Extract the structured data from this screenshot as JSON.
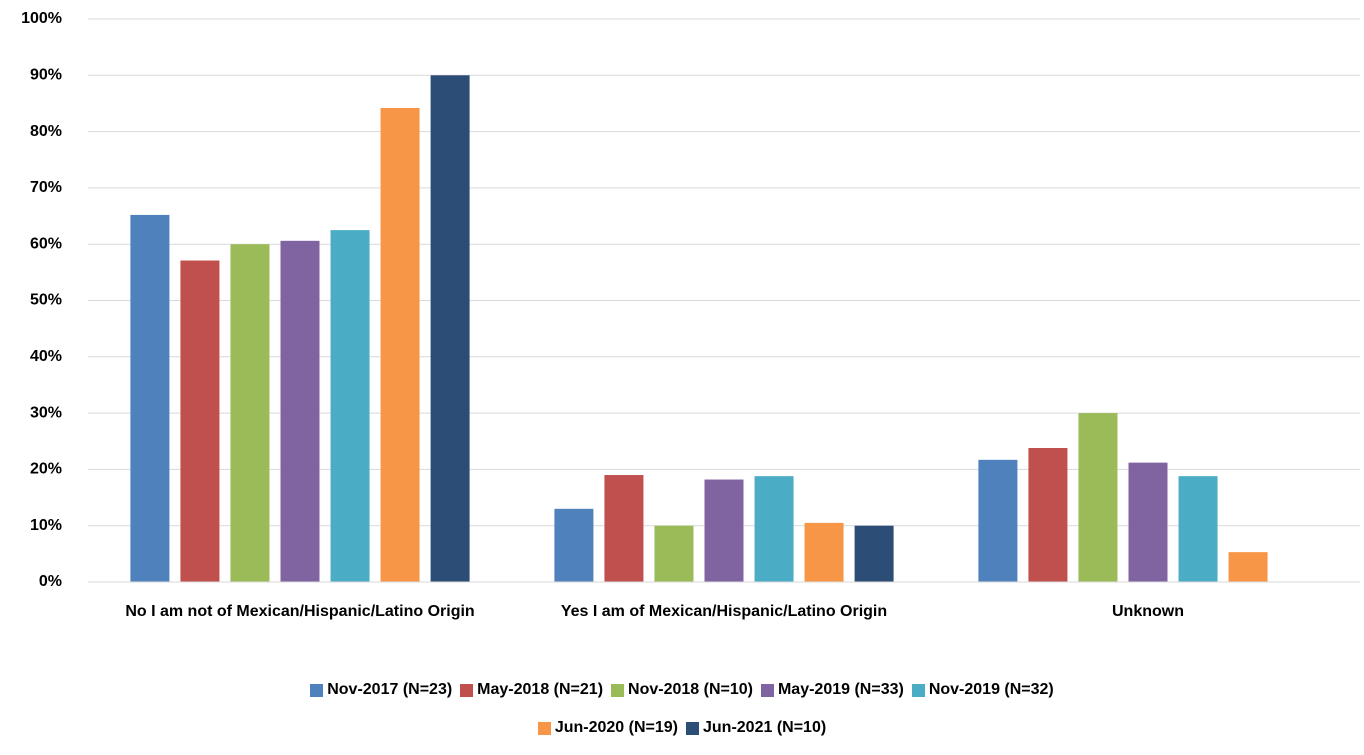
{
  "chart_data": {
    "type": "bar",
    "categories": [
      "No I am not of Mexican/Hispanic/Latino Origin",
      "Yes I am of Mexican/Hispanic/Latino Origin",
      "Unknown"
    ],
    "series": [
      {
        "name": "Nov-2017 (N=23)",
        "color": "#4f81bd",
        "values": [
          65.2,
          13.0,
          21.7
        ]
      },
      {
        "name": "May-2018 (N=21)",
        "color": "#c0504d",
        "values": [
          57.1,
          19.0,
          23.8
        ]
      },
      {
        "name": "Nov-2018 (N=10)",
        "color": "#9bbb59",
        "values": [
          60,
          10,
          30
        ]
      },
      {
        "name": "May-2019 (N=33)",
        "color": "#8064a2",
        "values": [
          60.6,
          18.2,
          21.2
        ]
      },
      {
        "name": "Nov-2019 (N=32)",
        "color": "#4bacc6",
        "values": [
          62.5,
          18.8,
          18.8
        ]
      },
      {
        "name": "Jun-2020 (N=19)",
        "color": "#f79646",
        "values": [
          84.2,
          10.5,
          5.3
        ]
      },
      {
        "name": "Jun-2021 (N=10)",
        "color": "#2c4d75",
        "values": [
          90,
          10,
          0
        ]
      }
    ],
    "ylim": [
      0,
      100
    ],
    "yticks": [
      {
        "value": 0,
        "label": "0%"
      },
      {
        "value": 10,
        "label": "10%"
      },
      {
        "value": 20,
        "label": "20%"
      },
      {
        "value": 30,
        "label": "30%"
      },
      {
        "value": 40,
        "label": "40%"
      },
      {
        "value": 50,
        "label": "50%"
      },
      {
        "value": 60,
        "label": "60%"
      },
      {
        "value": 70,
        "label": "70%"
      },
      {
        "value": 80,
        "label": "80%"
      },
      {
        "value": 90,
        "label": "90%"
      },
      {
        "value": 100,
        "label": "100%"
      }
    ],
    "grid": true,
    "legend": "bottom"
  }
}
